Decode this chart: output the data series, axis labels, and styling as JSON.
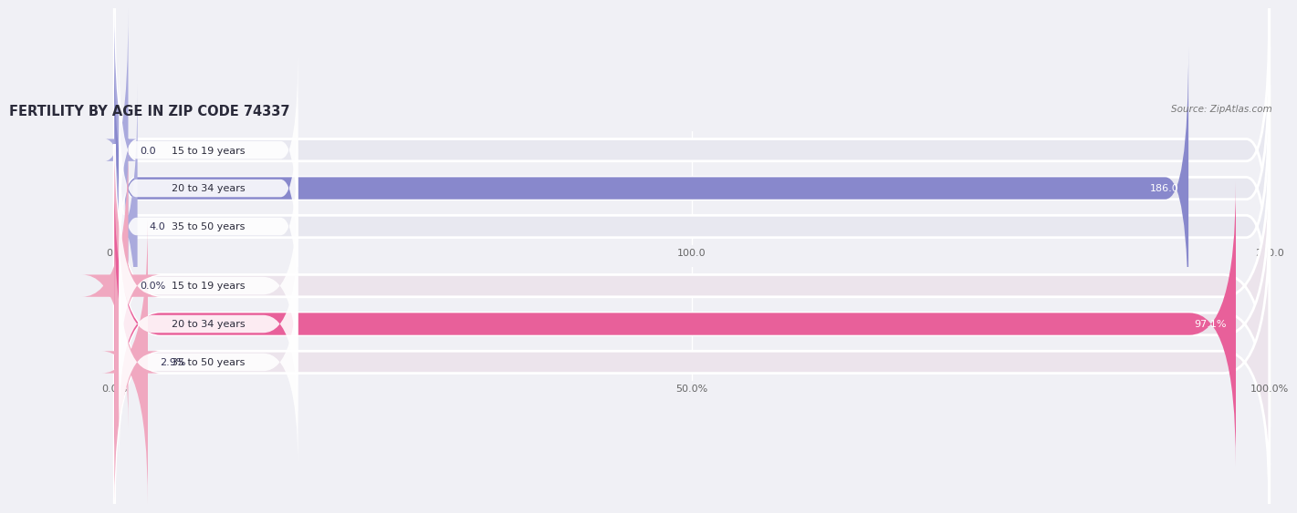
{
  "title": "FERTILITY BY AGE IN ZIP CODE 74337",
  "source": "Source: ZipAtlas.com",
  "chart1": {
    "categories": [
      "15 to 19 years",
      "20 to 34 years",
      "35 to 50 years"
    ],
    "values": [
      0.0,
      186.0,
      4.0
    ],
    "value_labels": [
      "0.0",
      "186.0",
      "4.0"
    ],
    "max_val": 200.0,
    "ticks": [
      0.0,
      100.0,
      200.0
    ],
    "tick_labels": [
      "0.0",
      "100.0",
      "200.0"
    ],
    "bar_color": "#8888cc",
    "bar_color_light": "#aaaadd",
    "bg_color": "#e8e8f0"
  },
  "chart2": {
    "categories": [
      "15 to 19 years",
      "20 to 34 years",
      "35 to 50 years"
    ],
    "values": [
      0.0,
      97.1,
      2.9
    ],
    "value_labels": [
      "0.0%",
      "97.1%",
      "2.9%"
    ],
    "max_val": 100.0,
    "ticks": [
      0.0,
      50.0,
      100.0
    ],
    "tick_labels": [
      "0.0%",
      "50.0%",
      "100.0%"
    ],
    "bar_color": "#e8609a",
    "bar_color_light": "#f0a8c0",
    "bg_color": "#ece4ec"
  },
  "label_fontsize": 8.0,
  "value_fontsize": 8.0,
  "title_fontsize": 10.5,
  "source_fontsize": 7.5,
  "title_color": "#2a2a3a",
  "tick_color": "#666666",
  "fig_bg": "#f0f0f5"
}
